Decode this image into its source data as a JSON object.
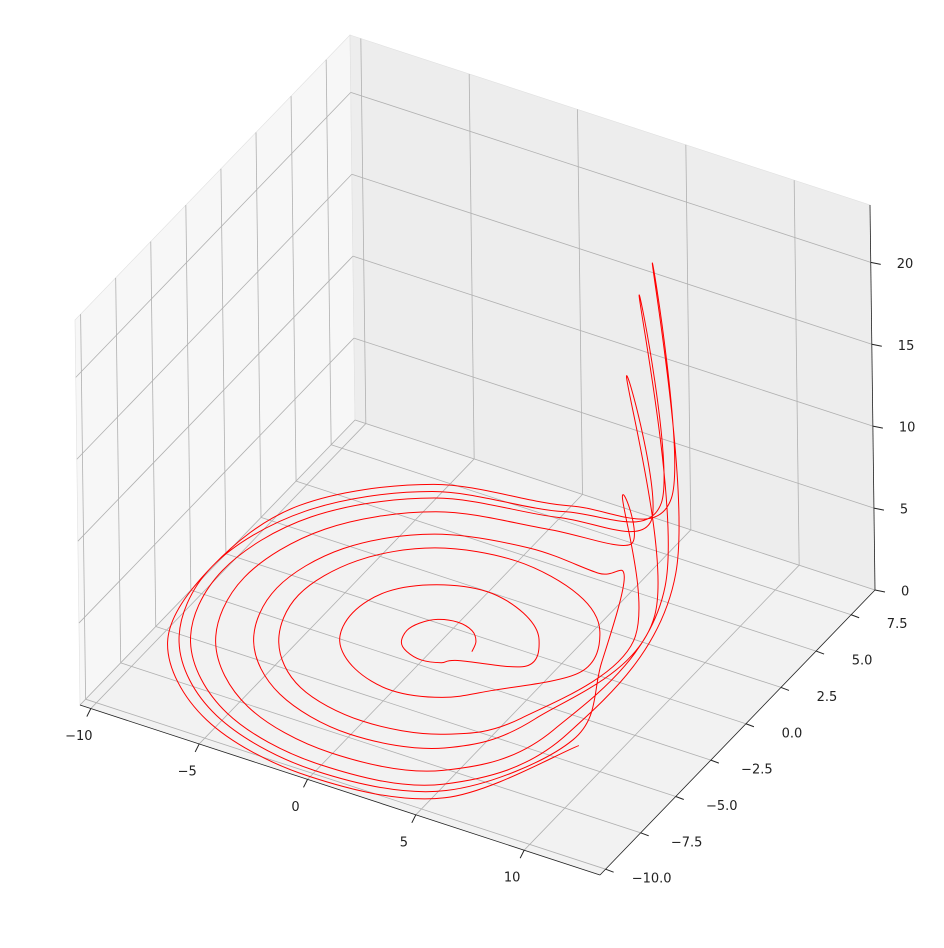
{
  "chart_data": {
    "type": "line3d",
    "series": [
      {
        "color": "#ff0000",
        "x": [
          1.5,
          1.3,
          0.8,
          0,
          -0.8,
          -1.3,
          -1.5,
          -1.3,
          -0.8,
          0,
          0.8,
          1.3,
          4,
          3.5,
          2,
          0,
          -2,
          -3.5,
          -4,
          -3.5,
          -2,
          0,
          2,
          3.5,
          6.5,
          5.6,
          3.3,
          0,
          -3.3,
          -5.6,
          -6.5,
          -5.6,
          -3.3,
          0,
          3.3,
          5.6,
          9,
          6,
          4.5,
          0,
          -4.5,
          -7.8,
          -9,
          -7.8,
          -4.5,
          0,
          4.5,
          7.8,
          10.5,
          6.5,
          5.3,
          0,
          -5.3,
          -9.1,
          -10.5,
          -9.1,
          -5.3,
          0,
          5.3,
          9.1,
          7.5,
          6.5,
          3.8,
          0,
          -3.8,
          -6.5,
          -7.5,
          -6.5,
          -3.8,
          0,
          3.8,
          6.5,
          10,
          6,
          5,
          0,
          -5,
          -8.7,
          -10,
          -8.7,
          -5,
          0,
          5,
          8.7,
          11,
          7,
          5.5,
          0,
          -5.5,
          -9.5,
          -10.5,
          -9.5,
          -5.5,
          0,
          5.5,
          9.5
        ],
        "y": [
          -1,
          -0.4,
          0.1,
          0.3,
          0.1,
          -0.4,
          -1,
          -1.7,
          -2.1,
          -2.3,
          -2.1,
          -1.7,
          -1,
          0.7,
          1.9,
          2.4,
          1.9,
          0.7,
          -1,
          -2.7,
          -3.9,
          -4.4,
          -3.9,
          -2.7,
          -1,
          1.8,
          3.8,
          4.5,
          3.8,
          1.8,
          -1,
          -3.8,
          -5.8,
          -6.5,
          -5.8,
          -3.8,
          -1,
          2.9,
          5.7,
          6.7,
          5.7,
          2.9,
          -1,
          -4.9,
          -7.7,
          -8.7,
          -7.7,
          -4.9,
          -1,
          3.5,
          6.7,
          7.9,
          6.7,
          3.5,
          -1,
          -5.5,
          -8.7,
          -9.9,
          -8.7,
          -5.5,
          -1,
          2.2,
          4.5,
          5.4,
          4.5,
          2.2,
          -1,
          -4.2,
          -6.5,
          -7.4,
          -6.5,
          -4.2,
          -1,
          3.3,
          6.4,
          7.5,
          6.4,
          3.3,
          -1,
          -5.3,
          -8.4,
          -9.5,
          -8.4,
          -5.3,
          -1,
          3.7,
          7.1,
          8.3,
          7.1,
          3.7,
          -1,
          -5.7,
          -9.1,
          -10.3,
          -9.1,
          -5.7
        ],
        "z": [
          0.1,
          0.1,
          0.1,
          0.1,
          0.1,
          0.1,
          0.1,
          0.1,
          0.1,
          0.1,
          0.1,
          0.1,
          0.3,
          0.2,
          0.1,
          0.1,
          0.1,
          0.1,
          0.1,
          0.1,
          0.1,
          0.1,
          0.1,
          0.1,
          1,
          0.6,
          0.1,
          0.1,
          0.1,
          0.1,
          0.1,
          0.1,
          0.1,
          0.1,
          0.1,
          0.3,
          4,
          8,
          2,
          0.1,
          0.1,
          0.1,
          0.1,
          0.1,
          0.1,
          0.1,
          0.1,
          1.5,
          8,
          20,
          4,
          0.1,
          0.1,
          0.1,
          0.1,
          0.1,
          0.1,
          0.1,
          0.1,
          2,
          2,
          4,
          1,
          0.1,
          0.1,
          0.1,
          0.1,
          0.1,
          0.1,
          0.1,
          0.1,
          1,
          6,
          15,
          3,
          0.1,
          0.1,
          0.1,
          0.1,
          0.1,
          0.1,
          0.1,
          0.1,
          2,
          9,
          22,
          4,
          0.1,
          0.1,
          0.1,
          0.1,
          0.1,
          0.1,
          0.1,
          0.1,
          2
        ]
      }
    ],
    "xlim": [
      -10.5,
      13.5
    ],
    "ylim": [
      -10.4,
      9.2
    ],
    "zlim": [
      0,
      23.5
    ],
    "xticks": [
      {
        "value": -10,
        "label": "−10"
      },
      {
        "value": -5,
        "label": "−5"
      },
      0,
      5,
      10
    ],
    "yticks": [
      {
        "value": -10,
        "label": "−10.0"
      },
      {
        "value": -7.5,
        "label": "−7.5"
      },
      {
        "value": -5,
        "label": "−5.0"
      },
      {
        "value": -2.5,
        "label": "−2.5"
      },
      {
        "value": 0,
        "label": "0.0"
      },
      2.5,
      {
        "value": 5,
        "label": "5.0"
      },
      7.5
    ],
    "zticks": [
      0,
      5,
      10,
      15,
      20
    ],
    "grid": true
  }
}
